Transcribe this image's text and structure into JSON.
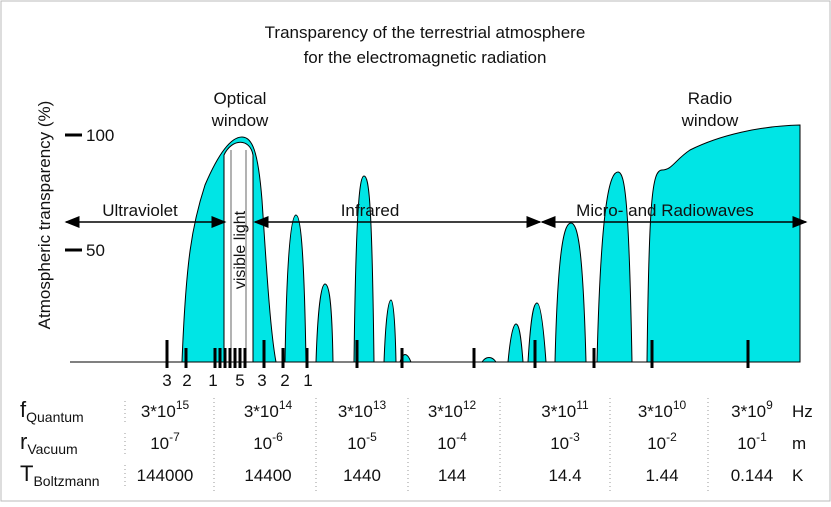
{
  "title": [
    "Transparency of the terrestrial atmosphere",
    "for the electromagnetic radiation"
  ],
  "y_axis_label": "Atmospheric transparency  (%)",
  "y_ticks": [
    "100",
    "50"
  ],
  "optical_window": [
    "Optical",
    "window"
  ],
  "radio_window": [
    "Radio",
    "window"
  ],
  "bands": {
    "ultraviolet": "Ultraviolet",
    "visible": "visible light",
    "infrared": "Infrared",
    "radio": "Micro- and Radiowaves"
  },
  "band_marks": [
    "3",
    "2",
    "1",
    "5",
    "3",
    "2",
    "1"
  ],
  "table": {
    "rows": [
      {
        "symbol": "f",
        "subscript": "Quantum",
        "unit": "Hz",
        "cells": [
          {
            "base": "3*10",
            "exp": "15"
          },
          {
            "base": "3*10",
            "exp": "14"
          },
          {
            "base": "3*10",
            "exp": "13"
          },
          {
            "base": "3*10",
            "exp": "12"
          },
          {
            "base": "3*10",
            "exp": "11"
          },
          {
            "base": "3*10",
            "exp": "10"
          },
          {
            "base": "3*10",
            "exp": "9"
          }
        ]
      },
      {
        "symbol": "r",
        "subscript": "Vacuum",
        "unit": "m",
        "cells": [
          {
            "base": "10",
            "exp": "-7"
          },
          {
            "base": "10",
            "exp": "-6"
          },
          {
            "base": "10",
            "exp": "-5"
          },
          {
            "base": "10",
            "exp": "-4"
          },
          {
            "base": "10",
            "exp": "-3"
          },
          {
            "base": "10",
            "exp": "-2"
          },
          {
            "base": "10",
            "exp": "-1"
          }
        ]
      },
      {
        "symbol": "T",
        "subscript": "Boltzmann",
        "unit": "K",
        "cells": [
          "144000",
          "14400",
          "1440",
          "144",
          "14.4",
          "1.44",
          "0.144"
        ]
      }
    ]
  }
}
